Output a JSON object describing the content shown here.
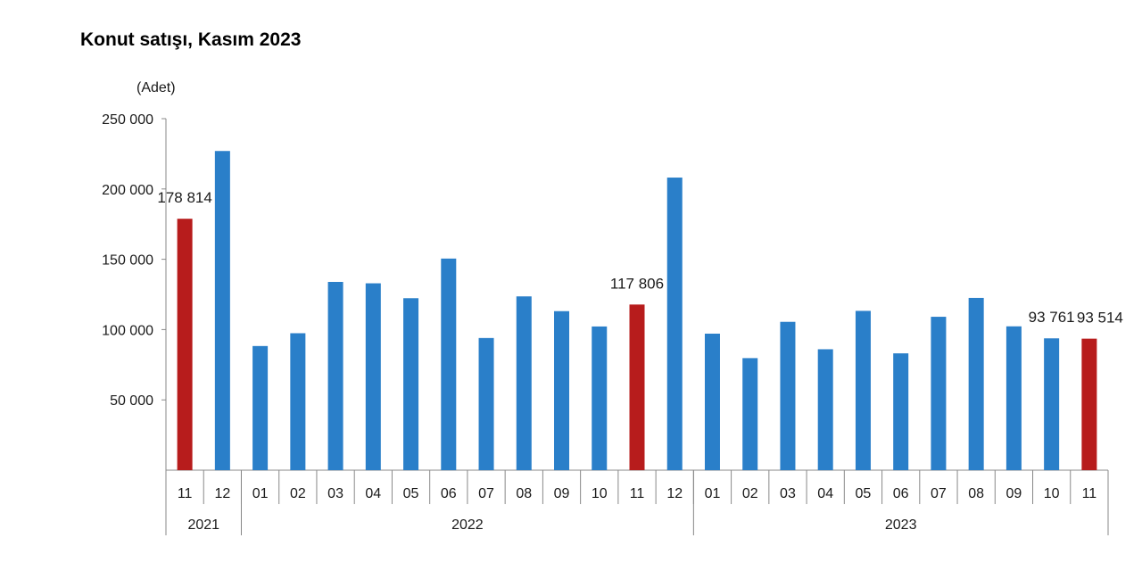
{
  "chart_data": {
    "type": "bar",
    "title": "Konut satışı, Kasım 2023",
    "ylabel": "(Adet)",
    "xlabel": "",
    "ylim": [
      0,
      250000
    ],
    "yticks": [
      50000,
      100000,
      150000,
      200000,
      250000
    ],
    "ytick_labels": [
      "50 000",
      "100 000",
      "150 000",
      "200 000",
      "250 000"
    ],
    "grid": false,
    "categories": [
      "11",
      "12",
      "01",
      "02",
      "03",
      "04",
      "05",
      "06",
      "07",
      "08",
      "09",
      "10",
      "11",
      "12",
      "01",
      "02",
      "03",
      "04",
      "05",
      "06",
      "07",
      "08",
      "09",
      "10",
      "11"
    ],
    "years": [
      {
        "label": "2021",
        "count": 2
      },
      {
        "label": "2022",
        "count": 12
      },
      {
        "label": "2023",
        "count": 11
      }
    ],
    "values": [
      178814,
      227000,
      88300,
      97400,
      133900,
      132900,
      122300,
      150500,
      94000,
      123600,
      113100,
      102200,
      117806,
      208100,
      97100,
      79700,
      105500,
      86000,
      113300,
      83100,
      109100,
      122500,
      102300,
      93761,
      93514
    ],
    "highlighted": [
      0,
      12,
      24
    ],
    "data_labels": [
      {
        "index": 0,
        "text": "178 814"
      },
      {
        "index": 12,
        "text": "117 806"
      },
      {
        "index": 23,
        "text": "93 761"
      },
      {
        "index": 24,
        "text": "93 514"
      }
    ],
    "colors": {
      "bar": "#2a7fc9",
      "highlight": "#b71c1c"
    }
  }
}
